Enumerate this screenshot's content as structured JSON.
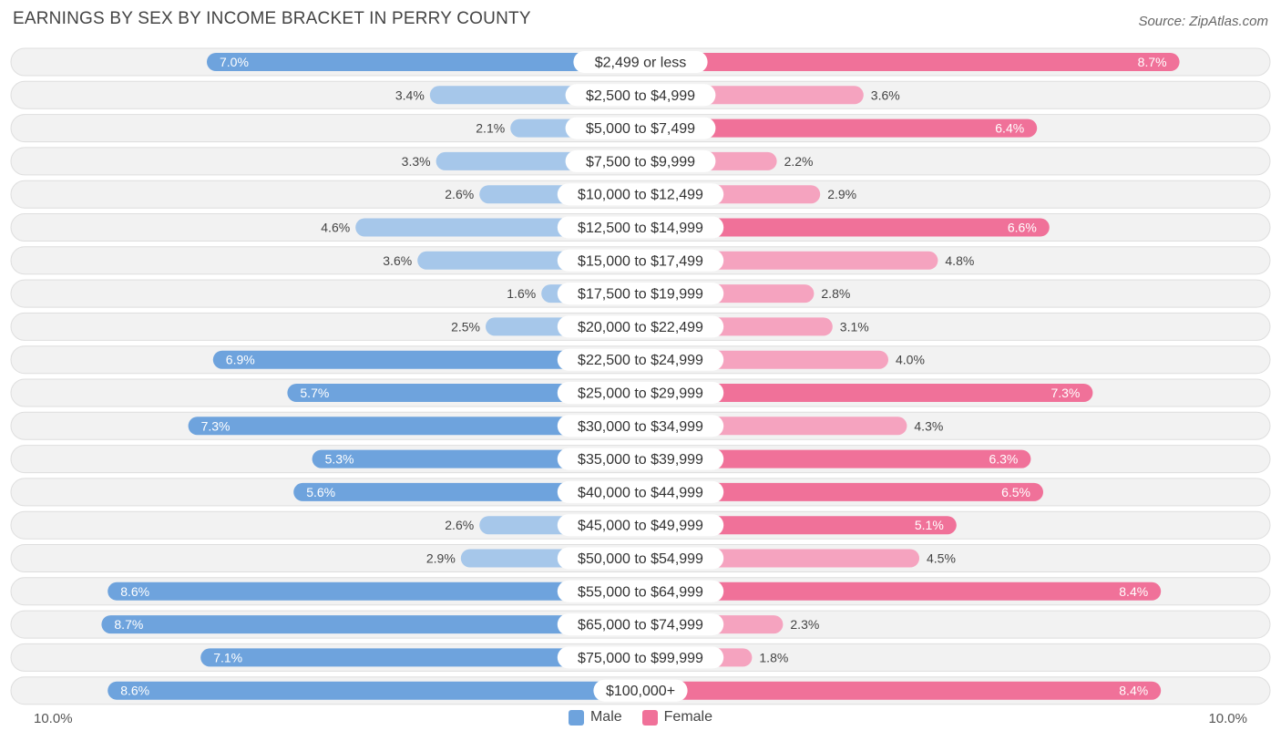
{
  "header": {
    "title": "EARNINGS BY SEX BY INCOME BRACKET IN PERRY COUNTY",
    "source": "Source: ZipAtlas.com"
  },
  "axis": {
    "left_label": "10.0%",
    "right_label": "10.0%"
  },
  "legend": {
    "male_label": "Male",
    "female_label": "Female"
  },
  "colors": {
    "male": "#6ea3dd",
    "male_light": "#a6c7ea",
    "female": "#f07199",
    "female_light": "#f5a3bf",
    "row_bg": "#f2f2f2",
    "row_border": "#dedede"
  },
  "chart_data": {
    "type": "bar",
    "title": "EARNINGS BY SEX BY INCOME BRACKET IN PERRY COUNTY",
    "xlim": [
      -10,
      10
    ],
    "categories": [
      "$2,499 or less",
      "$2,500 to $4,999",
      "$5,000 to $7,499",
      "$7,500 to $9,999",
      "$10,000 to $12,499",
      "$12,500 to $14,999",
      "$15,000 to $17,499",
      "$17,500 to $19,999",
      "$20,000 to $22,499",
      "$22,500 to $24,999",
      "$25,000 to $29,999",
      "$30,000 to $34,999",
      "$35,000 to $39,999",
      "$40,000 to $44,999",
      "$45,000 to $49,999",
      "$50,000 to $54,999",
      "$55,000 to $64,999",
      "$65,000 to $74,999",
      "$75,000 to $99,999",
      "$100,000+"
    ],
    "series": [
      {
        "name": "Male",
        "values": [
          7.0,
          3.4,
          2.1,
          3.3,
          2.6,
          4.6,
          3.6,
          1.6,
          2.5,
          6.9,
          5.7,
          7.3,
          5.3,
          5.6,
          2.6,
          2.9,
          8.6,
          8.7,
          7.1,
          8.6
        ],
        "labels": [
          "7.0%",
          "3.4%",
          "2.1%",
          "3.3%",
          "2.6%",
          "4.6%",
          "3.6%",
          "1.6%",
          "2.5%",
          "6.9%",
          "5.7%",
          "7.3%",
          "5.3%",
          "5.6%",
          "2.6%",
          "2.9%",
          "8.6%",
          "8.7%",
          "7.1%",
          "8.6%"
        ]
      },
      {
        "name": "Female",
        "values": [
          8.7,
          3.6,
          6.4,
          2.2,
          2.9,
          6.6,
          4.8,
          2.8,
          3.1,
          4.0,
          7.3,
          4.3,
          6.3,
          6.5,
          5.1,
          4.5,
          8.4,
          2.3,
          1.8,
          8.4
        ],
        "labels": [
          "8.7%",
          "3.6%",
          "6.4%",
          "2.2%",
          "2.9%",
          "6.6%",
          "4.8%",
          "2.8%",
          "3.1%",
          "4.0%",
          "7.3%",
          "4.3%",
          "6.3%",
          "6.5%",
          "5.1%",
          "4.5%",
          "8.4%",
          "2.3%",
          "1.8%",
          "8.4%"
        ]
      }
    ],
    "legend_position": "bottom-center"
  }
}
